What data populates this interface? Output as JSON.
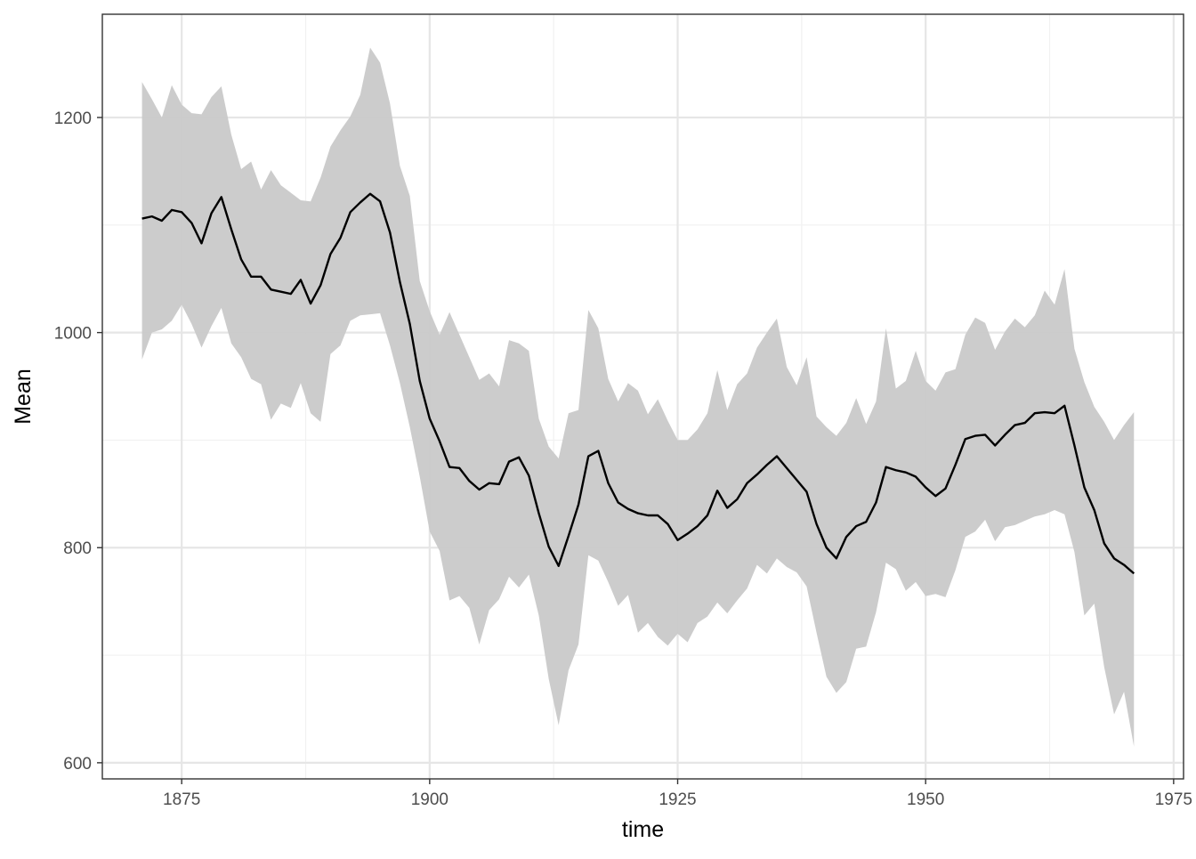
{
  "chart_data": {
    "type": "line",
    "title": "",
    "xlabel": "time",
    "ylabel": "Mean",
    "xlim": [
      1867,
      1976
    ],
    "ylim": [
      585,
      1296
    ],
    "x_ticks": [
      1875,
      1900,
      1925,
      1950,
      1975
    ],
    "x_minor_ticks": [
      1887.5,
      1912.5,
      1937.5,
      1962.5
    ],
    "y_ticks": [
      600,
      800,
      1000,
      1200
    ],
    "y_minor_ticks": [
      700,
      900,
      1100
    ],
    "x_tick_labels": [
      "1875",
      "1900",
      "1925",
      "1950",
      "1975"
    ],
    "y_tick_labels": [
      "600",
      "800",
      "1000",
      "1200"
    ],
    "grid": true,
    "legend": "none",
    "colors": {
      "line": "#000000",
      "ribbon": "#c9c9c9",
      "grid": "#e6e6e6",
      "border": "#333333"
    },
    "x": [
      1871,
      1872,
      1873,
      1874,
      1875,
      1876,
      1877,
      1878,
      1879,
      1880,
      1881,
      1882,
      1883,
      1884,
      1885,
      1886,
      1887,
      1888,
      1889,
      1890,
      1891,
      1892,
      1893,
      1894,
      1895,
      1896,
      1897,
      1898,
      1899,
      1900,
      1901,
      1902,
      1903,
      1904,
      1905,
      1906,
      1907,
      1908,
      1909,
      1910,
      1911,
      1912,
      1913,
      1914,
      1915,
      1916,
      1917,
      1918,
      1919,
      1920,
      1921,
      1922,
      1923,
      1924,
      1925,
      1926,
      1927,
      1928,
      1929,
      1930,
      1931,
      1932,
      1933,
      1934,
      1935,
      1936,
      1937,
      1938,
      1939,
      1940,
      1941,
      1942,
      1943,
      1944,
      1945,
      1946,
      1947,
      1948,
      1949,
      1950,
      1951,
      1952,
      1953,
      1954,
      1955,
      1956,
      1957,
      1958,
      1959,
      1960,
      1961,
      1962,
      1963,
      1964,
      1965,
      1966,
      1967,
      1968,
      1969,
      1970,
      1971
    ],
    "mean": [
      1106,
      1108,
      1104,
      1114,
      1112,
      1102,
      1083,
      1111,
      1126,
      1096,
      1068,
      1052,
      1052,
      1040,
      1038,
      1036,
      1049,
      1027,
      1044,
      1073,
      1088,
      1112,
      1121,
      1129,
      1122,
      1093,
      1047,
      1008,
      955,
      920,
      899,
      875,
      874,
      862,
      854,
      860,
      859,
      880,
      884,
      867,
      832,
      801,
      783,
      811,
      840,
      885,
      890,
      860,
      842,
      836,
      832,
      830,
      830,
      822,
      807,
      813,
      820,
      830,
      853,
      837,
      845,
      860,
      868,
      877,
      885,
      874,
      863,
      852,
      822,
      800,
      790,
      810,
      820,
      824,
      842,
      875,
      872,
      870,
      866,
      856,
      848,
      855,
      877,
      901,
      904,
      905,
      895,
      905,
      914,
      916,
      925,
      926,
      925,
      932,
      895,
      856,
      835,
      804,
      790,
      784,
      776
    ],
    "upper": [
      1233,
      1217,
      1200,
      1230,
      1212,
      1204,
      1203,
      1219,
      1229,
      1184,
      1152,
      1159,
      1133,
      1151,
      1137,
      1130,
      1123,
      1122,
      1144,
      1173,
      1188,
      1201,
      1221,
      1265,
      1251,
      1213,
      1155,
      1127,
      1048,
      1020,
      998,
      1019,
      998,
      977,
      956,
      962,
      950,
      993,
      990,
      983,
      920,
      894,
      883,
      925,
      928,
      1021,
      1004,
      957,
      936,
      953,
      946,
      924,
      938,
      918,
      900,
      900,
      910,
      925,
      965,
      928,
      952,
      962,
      986,
      1000,
      1013,
      968,
      951,
      977,
      922,
      912,
      904,
      916,
      939,
      915,
      936,
      1004,
      948,
      955,
      983,
      955,
      946,
      963,
      966,
      998,
      1014,
      1009,
      984,
      1001,
      1013,
      1005,
      1016,
      1039,
      1026,
      1059,
      985,
      954,
      931,
      917,
      900,
      914,
      926
    ],
    "lower": [
      975,
      1000,
      1003,
      1011,
      1026,
      1008,
      986,
      1006,
      1023,
      990,
      977,
      957,
      952,
      919,
      934,
      930,
      953,
      925,
      917,
      980,
      988,
      1011,
      1016,
      1017,
      1018,
      988,
      953,
      912,
      866,
      815,
      797,
      751,
      755,
      744,
      710,
      742,
      752,
      773,
      763,
      775,
      737,
      678,
      635,
      686,
      710,
      793,
      788,
      768,
      746,
      756,
      721,
      730,
      717,
      709,
      720,
      712,
      730,
      736,
      749,
      739,
      751,
      762,
      784,
      776,
      790,
      782,
      777,
      764,
      721,
      680,
      665,
      675,
      706,
      708,
      740,
      786,
      780,
      760,
      768,
      755,
      757,
      754,
      779,
      810,
      815,
      826,
      806,
      819,
      821,
      825,
      829,
      831,
      835,
      831,
      796,
      737,
      748,
      689,
      645,
      666,
      615
    ]
  }
}
